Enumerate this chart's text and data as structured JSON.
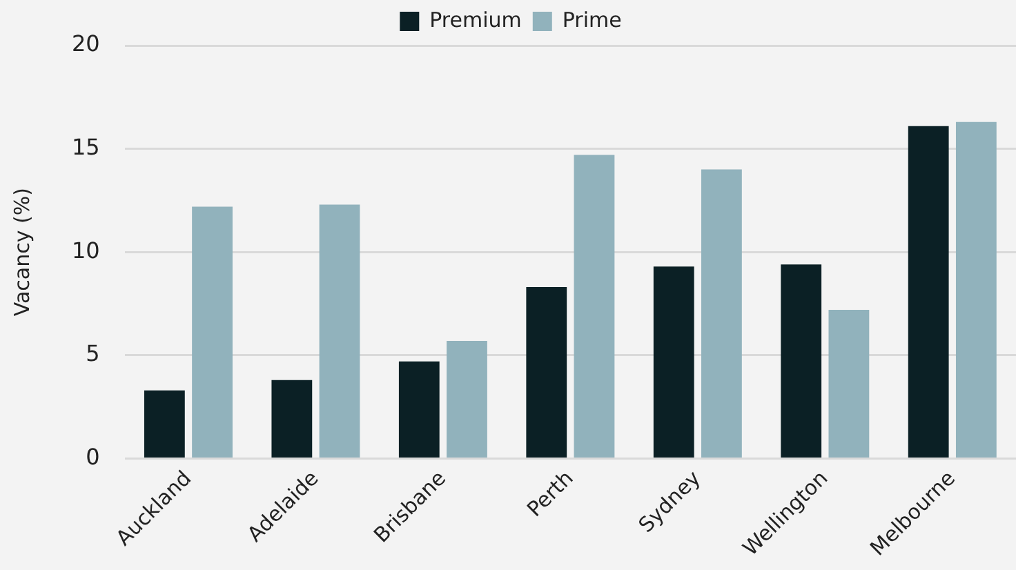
{
  "chart_data": {
    "type": "bar",
    "ylabel": "Vacancy (%)",
    "categories": [
      "Auckland",
      "Adelaide",
      "Brisbane",
      "Perth",
      "Sydney",
      "Wellington",
      "Melbourne"
    ],
    "series": [
      {
        "name": "Premium",
        "color": "#0b2025",
        "values": [
          3.3,
          3.8,
          4.7,
          8.3,
          9.3,
          9.4,
          16.1
        ]
      },
      {
        "name": "Prime",
        "color": "#91b2bc",
        "values": [
          12.2,
          12.3,
          5.7,
          14.7,
          14.0,
          7.2,
          16.3
        ]
      }
    ],
    "ylim": [
      0,
      20
    ],
    "yticks": [
      0,
      5,
      10,
      15,
      20
    ],
    "grid": "y",
    "legend": "top"
  }
}
